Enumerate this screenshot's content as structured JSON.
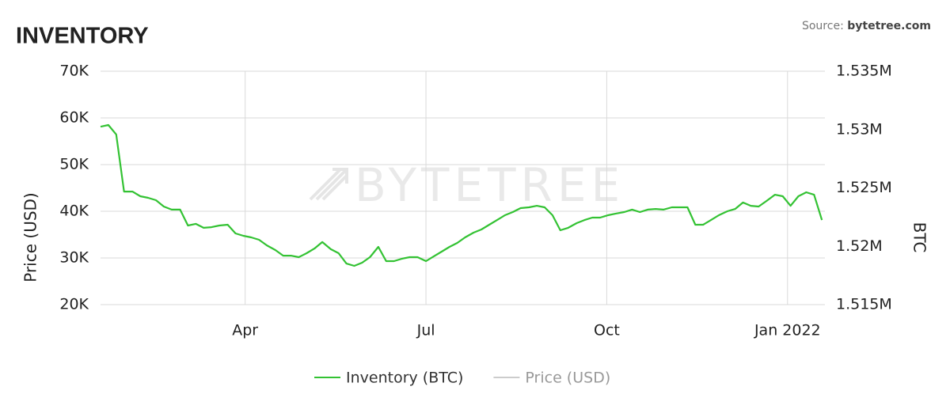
{
  "chart_data": {
    "type": "line",
    "title": "INVENTORY",
    "source_label": "Source:",
    "source": "bytetree.com",
    "watermark": "BYTETREE",
    "y_label": "Price (USD)",
    "y2_label": "BTC",
    "x": [
      0.6,
      0.73,
      0.86,
      0.99,
      1.13,
      1.26,
      1.39,
      1.52,
      1.65,
      1.78,
      1.92,
      2.05,
      2.18,
      2.31,
      2.44,
      2.57,
      2.71,
      2.84,
      2.97,
      3.1,
      3.23,
      3.36,
      3.5,
      3.63,
      3.76,
      3.89,
      4.02,
      4.15,
      4.28,
      4.42,
      4.55,
      4.68,
      4.81,
      4.94,
      5.07,
      5.21,
      5.34,
      5.47,
      5.6,
      5.73,
      5.86,
      6.0,
      6.13,
      6.26,
      6.39,
      6.52,
      6.65,
      6.79,
      6.92,
      7.05,
      7.18,
      7.31,
      7.44,
      7.57,
      7.71,
      7.84,
      7.97,
      8.1,
      8.23,
      8.36,
      8.5,
      8.63,
      8.76,
      8.89,
      9.02,
      9.15,
      9.29,
      9.42,
      9.55,
      9.68,
      9.81,
      9.94,
      10.08,
      10.21,
      10.34,
      10.47,
      10.6,
      10.73,
      10.86,
      11.0,
      11.13,
      11.26,
      11.39,
      11.52,
      11.65,
      11.79,
      11.92,
      12.05,
      12.18,
      12.31,
      12.44,
      12.57
    ],
    "xlim": [
      0.6,
      12.62
    ],
    "xticks": [
      {
        "value": 3,
        "label": "Apr"
      },
      {
        "value": 6,
        "label": "Jul"
      },
      {
        "value": 9,
        "label": "Oct"
      },
      {
        "value": 12,
        "label": "Jan 2022"
      }
    ],
    "ylim": [
      20000,
      70000
    ],
    "yticks": [
      {
        "value": 20000,
        "label": "20K"
      },
      {
        "value": 30000,
        "label": "30K"
      },
      {
        "value": 40000,
        "label": "40K"
      },
      {
        "value": 50000,
        "label": "50K"
      },
      {
        "value": 60000,
        "label": "60K"
      },
      {
        "value": 70000,
        "label": "70K"
      }
    ],
    "y2lim": [
      1515000,
      1535000
    ],
    "y2ticks": [
      {
        "value": 1515000,
        "label": "1.515M"
      },
      {
        "value": 1520000,
        "label": "1.52M"
      },
      {
        "value": 1525000,
        "label": "1.525M"
      },
      {
        "value": 1530000,
        "label": "1.53M"
      },
      {
        "value": 1535000,
        "label": "1.535M"
      }
    ],
    "grid": true,
    "legend": "bottom",
    "series": [
      {
        "name": "Inventory (BTC)",
        "color": "#33c233",
        "axis": "y2",
        "visible": true,
        "values": [
          1530250,
          1530390,
          1529580,
          1524690,
          1524690,
          1524290,
          1524150,
          1523950,
          1523410,
          1523140,
          1523140,
          1521780,
          1521920,
          1521580,
          1521640,
          1521780,
          1521850,
          1521100,
          1520900,
          1520760,
          1520560,
          1520080,
          1519680,
          1519200,
          1519200,
          1519070,
          1519410,
          1519810,
          1520360,
          1519750,
          1519410,
          1518520,
          1518320,
          1518590,
          1519070,
          1519950,
          1518730,
          1518730,
          1518930,
          1519070,
          1519070,
          1518730,
          1519140,
          1519540,
          1519950,
          1520290,
          1520760,
          1521170,
          1521440,
          1521850,
          1522250,
          1522660,
          1522930,
          1523270,
          1523340,
          1523470,
          1523340,
          1522660,
          1521370,
          1521580,
          1521980,
          1522250,
          1522460,
          1522460,
          1522660,
          1522800,
          1522930,
          1523140,
          1522930,
          1523140,
          1523200,
          1523140,
          1523340,
          1523340,
          1523340,
          1521850,
          1521850,
          1522250,
          1522660,
          1523000,
          1523200,
          1523750,
          1523470,
          1523410,
          1523880,
          1524420,
          1524290,
          1523470,
          1524290,
          1524630,
          1524420,
          1522250
        ]
      },
      {
        "name": "Price (USD)",
        "color": "#999999",
        "visible": false,
        "values": [
          null,
          null,
          null,
          null,
          null,
          null,
          null,
          null,
          null,
          null,
          null,
          null,
          null,
          null,
          null,
          null,
          null,
          null,
          null,
          null,
          null,
          null,
          null,
          null,
          null,
          null,
          null,
          null,
          null,
          null,
          null,
          null,
          null,
          null,
          null,
          null,
          null,
          null,
          null,
          null,
          null,
          null,
          null,
          null,
          null,
          null,
          null,
          null,
          null,
          null,
          null,
          null,
          null,
          null,
          null,
          null,
          null,
          null,
          null,
          null,
          null,
          null,
          null,
          null,
          null,
          null,
          null,
          null,
          null,
          null,
          null,
          null,
          null,
          null,
          null,
          null,
          null,
          null,
          null,
          null,
          null,
          null,
          null,
          null,
          null,
          null,
          null,
          null,
          null,
          null,
          null,
          null
        ]
      }
    ]
  }
}
